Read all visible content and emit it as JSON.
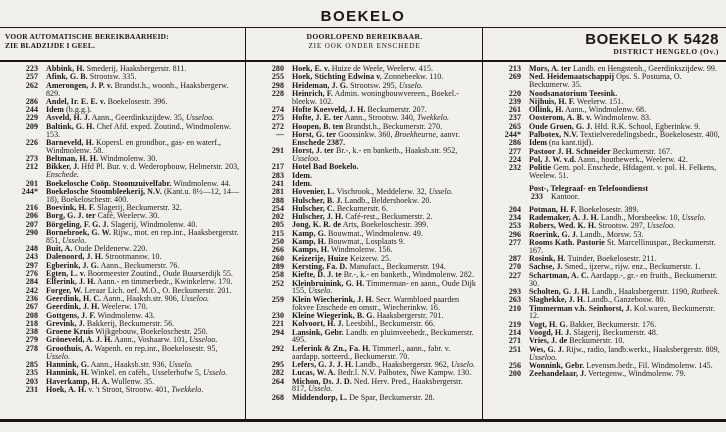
{
  "page": {
    "title": "BOEKELO",
    "header": {
      "left_line1": "VOOR AUTOMATISCHE BEREIKBAARHEID:",
      "left_line2": "ZIE BLADZIJDE I GEEL.",
      "middle_line1": "DOORLOPEND BEREIKBAAR.",
      "middle_line2": "ZIE OOK ONDER ENSCHEDE",
      "right_title": "BOEKELO K 5428",
      "right_subtitle": "DISTRICT HENGELO (Ov.)"
    }
  },
  "colors": {
    "paper": "#f2f0ea",
    "ink": "#1b1813"
  },
  "columns": [
    {
      "entries": [
        {
          "num": "223",
          "name": "Abbink, H.",
          "text": "Smederij, Haaksbergerstr. 811."
        },
        {
          "num": "257",
          "name": "Afink, G. B.",
          "text": "Strootsw. 335."
        },
        {
          "num": "262",
          "name": "Amerongen, J. P. v.",
          "text": "Brandst.h., woonh., Haaksbergerw. 829."
        },
        {
          "num": "286",
          "name": "Andel, Ir. E. E. v.",
          "text": "Boekelosestr. 396."
        },
        {
          "num": "244",
          "name": "Idem",
          "text": "(b.g.g.)."
        },
        {
          "num": "229",
          "name": "Asveld, H. J.",
          "text": "Aann., Geerdinkszijdew. 35, _Usseloo._"
        },
        {
          "num": "209",
          "name": "Baltink, G. H.",
          "text": "Chef Afd. exped. Zoutind., Windmolenw. 153."
        },
        {
          "num": "226",
          "name": "Barneveld, H.",
          "text": "Kopersl. en grondbor., gas- en waterf., Windmolenw. 58."
        },
        {
          "num": "273",
          "name": "Beltman, H. H.",
          "text": "Windmolenw. 30."
        },
        {
          "num": "212",
          "name": "Bikker, J.",
          "text": "Hfd Pl. Bur. v. d. Wederopbouw, Helmerstr. 203, _Enschede._"
        },
        {
          "num": "201",
          "name": "Boekelosche Coöp. Stoomzuivelfabr.",
          "text": "Windmolenw. 44."
        },
        {
          "num": "244*",
          "name": "Boekelosche Stoombleekerij, N.V.",
          "text": "(Kant.u. 8½—12, 14—18), Boekeloschestr. 400."
        },
        {
          "num": "216",
          "name": "Boevink, H. F.",
          "text": "Slagerij, Beckumerstr. 32."
        },
        {
          "num": "206",
          "name": "Borg, G. J. ter",
          "text": "Café, Weelerw. 30."
        },
        {
          "num": "207",
          "name": "Börgeling, F. G. J.",
          "text": "Slagerij, Windmolenw. 40."
        },
        {
          "num": "290",
          "name": "Bornebroek, G. W.",
          "text": "Rijw., mot. en rep.inr., Haaksbergerstr. 851, _Usselo._"
        },
        {
          "num": "248",
          "name": "Buit, A.",
          "text": "Oude Deldenerw. 220."
        },
        {
          "num": "243",
          "name": "Dalenoord, J. H.",
          "text": "Strootmansw. 10."
        },
        {
          "num": "297",
          "name": "Egberink, J. G.",
          "text": "Aann., Beckumerstr. 76."
        },
        {
          "num": "276",
          "name": "Egten, L. v.",
          "text": "Boormeester Zoutind., Oude Buurserdijk 55."
        },
        {
          "num": "284",
          "name": "Elferink, J. H.",
          "text": "Aann.- en timmerbedr., Kwinkelerw. 170."
        },
        {
          "num": "242",
          "name": "Forger, W.",
          "text": "Leraar Lich. oef. M.O., O. Beckumerstr. 201."
        },
        {
          "num": "236",
          "name": "Geerdink, H. C.",
          "text": "Aann., Haaksb.str. 906, _Usseloo._"
        },
        {
          "num": "267",
          "name": "Geerdink, J. H.",
          "text": "Weelerw. 170."
        },
        {
          "num": "208",
          "name": "Gottgens, J. F.",
          "text": "Windmolenw. 43."
        },
        {
          "num": "218",
          "name": "Grevink, J.",
          "text": "Bakkerij, Beckumerstr. 56."
        },
        {
          "num": "238",
          "name": "Groene Kruis",
          "text": "Wijkgebouw, Boekeloschestr. 250."
        },
        {
          "num": "279",
          "name": "Gröneveld, A. J. H.",
          "text": "Aann., Voshaarw. 101, _Usseloo._"
        },
        {
          "num": "278",
          "name": "Groothuis, A.",
          "text": "Wapenh. en rep.inr., Boekelosestr. 95, _Usselo._"
        },
        {
          "num": "285",
          "name": "Hannink, G.",
          "text": "Aann., Haaksb.str. 936, _Usselo._"
        },
        {
          "num": "235",
          "name": "Hannink, H.",
          "text": "Winkel. en caféh., Usselerhofw 5, _Usselo._"
        },
        {
          "num": "203",
          "name": "Haverkamp, H. A.",
          "text": "Wullenw. 35."
        },
        {
          "num": "231",
          "name": "Hoek, A. H.",
          "text": "v. 't Stroot, Strootw. 401, _Twekkelo._"
        }
      ]
    },
    {
      "entries": [
        {
          "num": "280",
          "name": "Hoek, E. v.",
          "text": "Huize de Weele, Weelerw. 415."
        },
        {
          "num": "255",
          "name": "Hoek, Stichting Edwina v.",
          "text": "Zonnebeekw. 110."
        },
        {
          "num": "298",
          "name": "Heideman, J. G.",
          "text": "Strootsw. 295, _Usselo._"
        },
        {
          "num": "228",
          "name": "Heinrich, F.",
          "text": "Admin. woningbouwvereen., Boekel.-bleekw. 102."
        },
        {
          "num": "274",
          "name": "Hofte Koesveld, J. H.",
          "text": "Beckumerstr. 207."
        },
        {
          "num": "275",
          "name": "Hofte, J. E. ter",
          "text": "Aann., Strootsw. 340, _Twekkelo._"
        },
        {
          "num": "272",
          "name": "Hoopen, B. ten",
          "text": "Brandst.h., Beckumerstr. 270."
        },
        {
          "num": "—",
          "name": "Horst, G. ter",
          "text": "Goossinkw. 360, _Broekheurne_, aanvr. **Enschede 2387.**"
        },
        {
          "num": "291",
          "name": "Horst, J. ter",
          "text": "Br.-, k.- en banketb., Haaksb.str. 952, _Usseloo._"
        },
        {
          "num": "217",
          "name": "Hotel Bad Boekelo.",
          "text": ""
        },
        {
          "num": "283",
          "name": "Idem.",
          "text": ""
        },
        {
          "num": "241",
          "name": "Idem.",
          "text": ""
        },
        {
          "num": "281",
          "name": "Hovenier, L.",
          "text": "Vischrook., Meddelerw. 32, _Usselo._"
        },
        {
          "num": "288",
          "name": "Hulscher, B. J.",
          "text": "Landb., Beldershoekw. 20."
        },
        {
          "num": "254",
          "name": "Hulscher, C.",
          "text": "Beckumerstr. 6."
        },
        {
          "num": "202",
          "name": "Hulscher, J. H.",
          "text": "Café-rest., Beckumerstr. 2."
        },
        {
          "num": "205",
          "name": "Jong, K. R. de",
          "text": "Arts, Boekeloschestr. 399."
        },
        {
          "num": "215",
          "name": "Kamp, G.",
          "text": "Bouwmat., Windmolenw. 49."
        },
        {
          "num": "250",
          "name": "Kamp, H.",
          "text": "Bouwmat., Losplaats 9."
        },
        {
          "num": "266",
          "name": "Kamps, H.",
          "text": "Windmolenw. 156."
        },
        {
          "num": "260",
          "name": "Keizerije, Huize",
          "text": "Keizerw. 25."
        },
        {
          "num": "289",
          "name": "Kersting, Fa. D.",
          "text": "Manufact., Beckumerstr. 194."
        },
        {
          "num": "258",
          "name": "Kiefte, D. J. te",
          "text": "Br.-, k.- en banketb., Windmolenw. 282."
        },
        {
          "num": "252",
          "name": "Kleinbruinink, G. H.",
          "text": "Timmerman- en aann., Oude Dijk 155, _Usselo._"
        },
        {
          "num": "259",
          "name": "Klein Wiecherink, J. H.",
          "text": "Secr. Warmbloed paarden fokvee Enschede en omstr., Wiecherinkw. 16."
        },
        {
          "num": "230",
          "name": "Kleine Wiegerink, B. G.",
          "text": "Haaksbergerstr. 701."
        },
        {
          "num": "221",
          "name": "Kolvoort, H. J.",
          "text": "Leesbibl., Beckumerstr. 66."
        },
        {
          "num": "294",
          "name": "Lansink, Gebr.",
          "text": "Landb. en pluimveebedr., Beckumerstr. 495."
        },
        {
          "num": "292",
          "name": "Leferink & Zn., Fa. H.",
          "text": "Timmerl., aann., fabr. v. aardapp. sorteerd., Beckumerstr. 70."
        },
        {
          "num": "295",
          "name": "Lefers, G. J. J. H.",
          "text": "Landb., Haaksbergerstr. 962, _Usselo._"
        },
        {
          "num": "282",
          "name": "Lucas, W. A.",
          "text": "Bedr.l. N.V. Palbotex, Nwe Kampw. 130."
        },
        {
          "num": "264",
          "name": "Michon, Ds. J. D.",
          "text": "Ned. Herv. Pred., Haaksbergerstr. 817, _Usselo._"
        },
        {
          "num": "268",
          "name": "Middendorp, L.",
          "text": "De Spar, Beckumerstr. 28."
        }
      ]
    },
    {
      "entries": [
        {
          "num": "213",
          "name": "Mors, A. ter",
          "text": "Landb. en Hengstenh., Geerdinkszijdew. 99."
        },
        {
          "num": "269",
          "name": "Ned. Heidemaatschappij",
          "text": "Ops. S. Postuma, O. Beckumerw. 35."
        },
        {
          "num": "220",
          "name": "Noodsanatorium Teesink.",
          "text": ""
        },
        {
          "num": "239",
          "name": "Nijhuis, H. F.",
          "text": "Weelerw. 151."
        },
        {
          "num": "261",
          "name": "Ollink, H.",
          "text": "Aann., Windmolenw. 68."
        },
        {
          "num": "237",
          "name": "Oosterom, A. B. v.",
          "text": "Windmolenw. 83."
        },
        {
          "num": "265",
          "name": "Oude Groen, G. J.",
          "text": "Hfd. R.K. School, Egberinkw. 9."
        },
        {
          "num": "244*",
          "name": "Palbotex, N.V.",
          "text": "Textielveredelingsbedr., Boekelosestr. 400,"
        },
        {
          "num": "286",
          "name": "Idem",
          "text": "(na kant.tijd)."
        },
        {
          "num": "277",
          "name": "Pastoor J. H. Schneider",
          "text": "Beckumerstr. 167."
        },
        {
          "num": "224",
          "name": "Pol, J. W. v.d.",
          "text": "Aann., houtbewerk., Weelerw. 42."
        },
        {
          "num": "232",
          "name": "Politie",
          "text": "Gem. pol. Enschede, Hfdagent. v. pol. H. Felkens, Weelew. 51."
        },
        {
          "heading": "Post-, Telegraaf- en Telefoondienst"
        },
        {
          "num": "233",
          "name": "",
          "text": "Kantoor.",
          "indent": true
        },
        {
          "num": "204",
          "name": "Potman, H. F.",
          "text": "Boekelosestr. 389."
        },
        {
          "num": "234",
          "name": "Rademaker, A. J. H.",
          "text": "Landb., Morsbeekw. 10, _Usselo._"
        },
        {
          "num": "253",
          "name": "Robers, Wed. K. H.",
          "text": "Strootsw. 297, _Usseloo._"
        },
        {
          "num": "296",
          "name": "Roerink, G. J.",
          "text": "Landb., Morsw. 53."
        },
        {
          "num": "277",
          "name": "Rooms Kath. Pastorie",
          "text": "St. Marcellinuspar., Beckumerstr. 167."
        },
        {
          "num": "287",
          "name": "Rosink, H.",
          "text": "Tuinder, Boekelosestr. 211."
        },
        {
          "num": "270",
          "name": "Sachse, J.",
          "text": "Smed., ijzerw., rijw. enz., Beckumerstr. 1."
        },
        {
          "num": "227",
          "name": "Schartman, A. C.",
          "text": "Aardapp.-, gr.- en fruith., Beckumerstr. 30."
        },
        {
          "num": "293",
          "name": "Scholten, G. J. H.",
          "text": "Landb., Haaksbergerstr. 1190, _Rutbeek._"
        },
        {
          "num": "263",
          "name": "Slaghekke, J. H.",
          "text": "Landb., Ganzebosw. 80."
        },
        {
          "num": "210",
          "name": "Timmerman v.h. Seinhorst, J.",
          "text": "Kol.waren, Beckumerstr. 12."
        },
        {
          "num": "219",
          "name": "Vogt, H. G.",
          "text": "Bakker, Beckumerstr. 176."
        },
        {
          "num": "214",
          "name": "Voogd, H. J.",
          "text": "Slagerij, Beckumerstr. 48."
        },
        {
          "num": "271",
          "name": "Vries, J. de",
          "text": "Beckumerstr. 10."
        },
        {
          "num": "251",
          "name": "Wes, G. J.",
          "text": "Rijw., radio, landb.werkt., Haaksbergerstr. 809, _Usseloo._"
        },
        {
          "num": "256",
          "name": "Wonnink, Gebr.",
          "text": "Levensm.bedr., Fil. Windmolenw. 145."
        },
        {
          "num": "200",
          "name": "Zeehandelaar, J.",
          "text": "Vertegenw., Windmolenw. 79."
        }
      ]
    }
  ]
}
